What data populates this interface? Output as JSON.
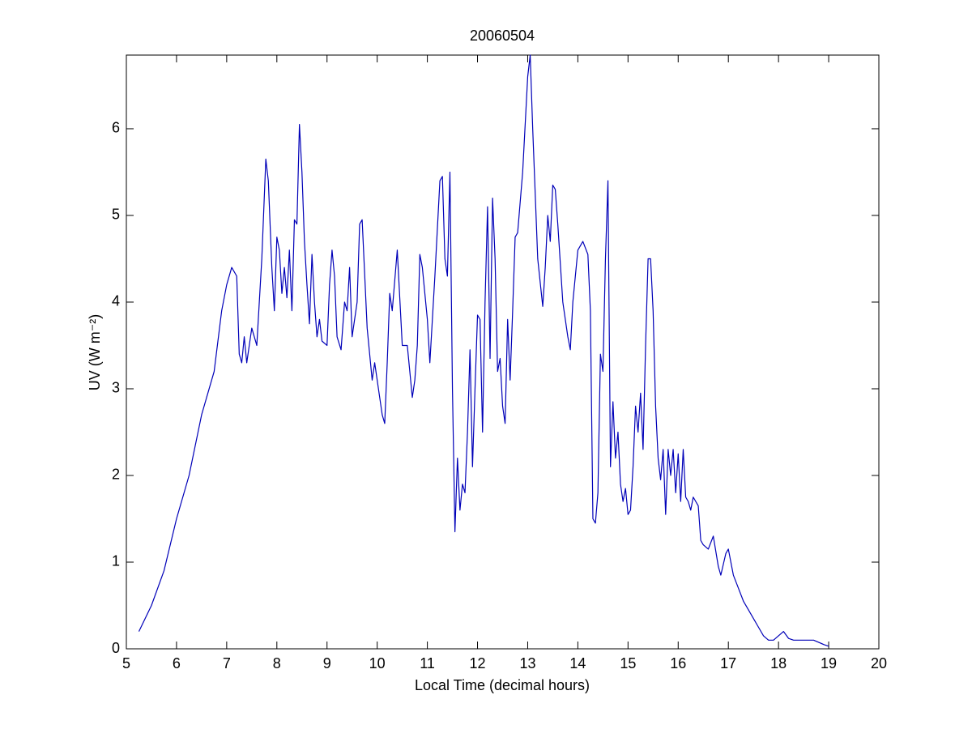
{
  "chart_data": {
    "type": "line",
    "title": "20060504",
    "x_label": "Local Time (decimal hours)",
    "y_label": "UV (W m⁻²)",
    "x": [
      5.25,
      5.5,
      5.75,
      6.0,
      6.25,
      6.5,
      6.75,
      6.9,
      7.0,
      7.1,
      7.2,
      7.25,
      7.3,
      7.35,
      7.4,
      7.5,
      7.6,
      7.7,
      7.78,
      7.83,
      7.9,
      7.95,
      8.0,
      8.05,
      8.1,
      8.15,
      8.2,
      8.25,
      8.3,
      8.35,
      8.4,
      8.45,
      8.5,
      8.55,
      8.6,
      8.65,
      8.7,
      8.75,
      8.8,
      8.85,
      8.9,
      9.0,
      9.05,
      9.1,
      9.15,
      9.2,
      9.28,
      9.35,
      9.4,
      9.45,
      9.5,
      9.6,
      9.65,
      9.7,
      9.8,
      9.9,
      9.95,
      10.0,
      10.05,
      10.1,
      10.15,
      10.2,
      10.25,
      10.3,
      10.4,
      10.45,
      10.5,
      10.6,
      10.7,
      10.75,
      10.8,
      10.85,
      10.9,
      11.0,
      11.05,
      11.15,
      11.25,
      11.3,
      11.35,
      11.4,
      11.45,
      11.5,
      11.55,
      11.6,
      11.65,
      11.7,
      11.75,
      11.8,
      11.85,
      11.9,
      11.95,
      12.0,
      12.05,
      12.1,
      12.15,
      12.2,
      12.25,
      12.3,
      12.35,
      12.4,
      12.45,
      12.5,
      12.55,
      12.6,
      12.65,
      12.7,
      12.75,
      12.8,
      12.9,
      13.0,
      13.05,
      13.1,
      13.2,
      13.3,
      13.35,
      13.4,
      13.45,
      13.5,
      13.55,
      13.6,
      13.7,
      13.8,
      13.85,
      13.9,
      14.0,
      14.1,
      14.2,
      14.25,
      14.3,
      14.35,
      14.4,
      14.45,
      14.5,
      14.55,
      14.6,
      14.65,
      14.7,
      14.75,
      14.8,
      14.85,
      14.9,
      14.95,
      15.0,
      15.05,
      15.1,
      15.15,
      15.2,
      15.25,
      15.3,
      15.35,
      15.4,
      15.45,
      15.5,
      15.55,
      15.6,
      15.65,
      15.7,
      15.75,
      15.8,
      15.85,
      15.9,
      15.95,
      16.0,
      16.05,
      16.1,
      16.15,
      16.2,
      16.25,
      16.3,
      16.4,
      16.45,
      16.5,
      16.6,
      16.7,
      16.8,
      16.85,
      16.95,
      17.0,
      17.1,
      17.2,
      17.3,
      17.4,
      17.5,
      17.6,
      17.7,
      17.8,
      17.9,
      18.0,
      18.1,
      18.2,
      18.3,
      18.5,
      18.7,
      18.9,
      19.0
    ],
    "values": [
      0.2,
      0.5,
      0.9,
      1.5,
      2.0,
      2.7,
      3.2,
      3.9,
      4.2,
      4.4,
      4.3,
      3.4,
      3.3,
      3.6,
      3.3,
      3.7,
      3.5,
      4.5,
      5.65,
      5.4,
      4.4,
      3.9,
      4.75,
      4.6,
      4.1,
      4.4,
      4.05,
      4.6,
      3.9,
      4.95,
      4.9,
      6.05,
      5.5,
      4.7,
      4.2,
      3.75,
      4.55,
      4.0,
      3.6,
      3.8,
      3.55,
      3.5,
      4.2,
      4.6,
      4.3,
      3.6,
      3.45,
      4.0,
      3.9,
      4.4,
      3.6,
      4.0,
      4.9,
      4.95,
      3.7,
      3.1,
      3.3,
      3.1,
      2.9,
      2.7,
      2.6,
      3.3,
      4.1,
      3.9,
      4.6,
      4.05,
      3.5,
      3.5,
      2.9,
      3.1,
      3.5,
      4.55,
      4.4,
      3.8,
      3.3,
      4.3,
      5.4,
      5.45,
      4.5,
      4.3,
      5.5,
      3.0,
      1.35,
      2.2,
      1.6,
      1.9,
      1.8,
      2.5,
      3.45,
      2.1,
      3.0,
      3.85,
      3.8,
      2.5,
      4.0,
      5.1,
      3.35,
      5.2,
      4.5,
      3.2,
      3.35,
      2.8,
      2.6,
      3.8,
      3.1,
      3.9,
      4.75,
      4.8,
      5.5,
      6.6,
      6.85,
      6.0,
      4.5,
      3.95,
      4.4,
      5.0,
      4.7,
      5.35,
      5.3,
      4.9,
      4.0,
      3.6,
      3.45,
      4.0,
      4.6,
      4.7,
      4.55,
      3.9,
      1.5,
      1.45,
      1.8,
      3.4,
      3.2,
      4.5,
      5.4,
      2.1,
      2.85,
      2.2,
      2.5,
      1.9,
      1.7,
      1.85,
      1.55,
      1.6,
      2.1,
      2.8,
      2.5,
      2.95,
      2.3,
      3.5,
      4.5,
      4.5,
      3.9,
      2.8,
      2.2,
      1.95,
      2.3,
      1.55,
      2.3,
      2.0,
      2.3,
      1.8,
      2.25,
      1.7,
      2.3,
      1.75,
      1.7,
      1.6,
      1.75,
      1.65,
      1.25,
      1.2,
      1.15,
      1.3,
      0.95,
      0.85,
      1.1,
      1.15,
      0.85,
      0.7,
      0.55,
      0.45,
      0.35,
      0.25,
      0.15,
      0.1,
      0.1,
      0.15,
      0.2,
      0.12,
      0.1,
      0.1,
      0.1,
      0.05,
      0.03
    ],
    "color": "#0000b8",
    "xlim": [
      5,
      20
    ],
    "xticks": [
      5,
      6,
      7,
      8,
      9,
      10,
      11,
      12,
      13,
      14,
      15,
      16,
      17,
      18,
      19,
      20
    ],
    "ylim": [
      0,
      6.85
    ],
    "yticks": [
      0,
      1,
      2,
      3,
      4,
      5,
      6
    ],
    "grid": false
  }
}
